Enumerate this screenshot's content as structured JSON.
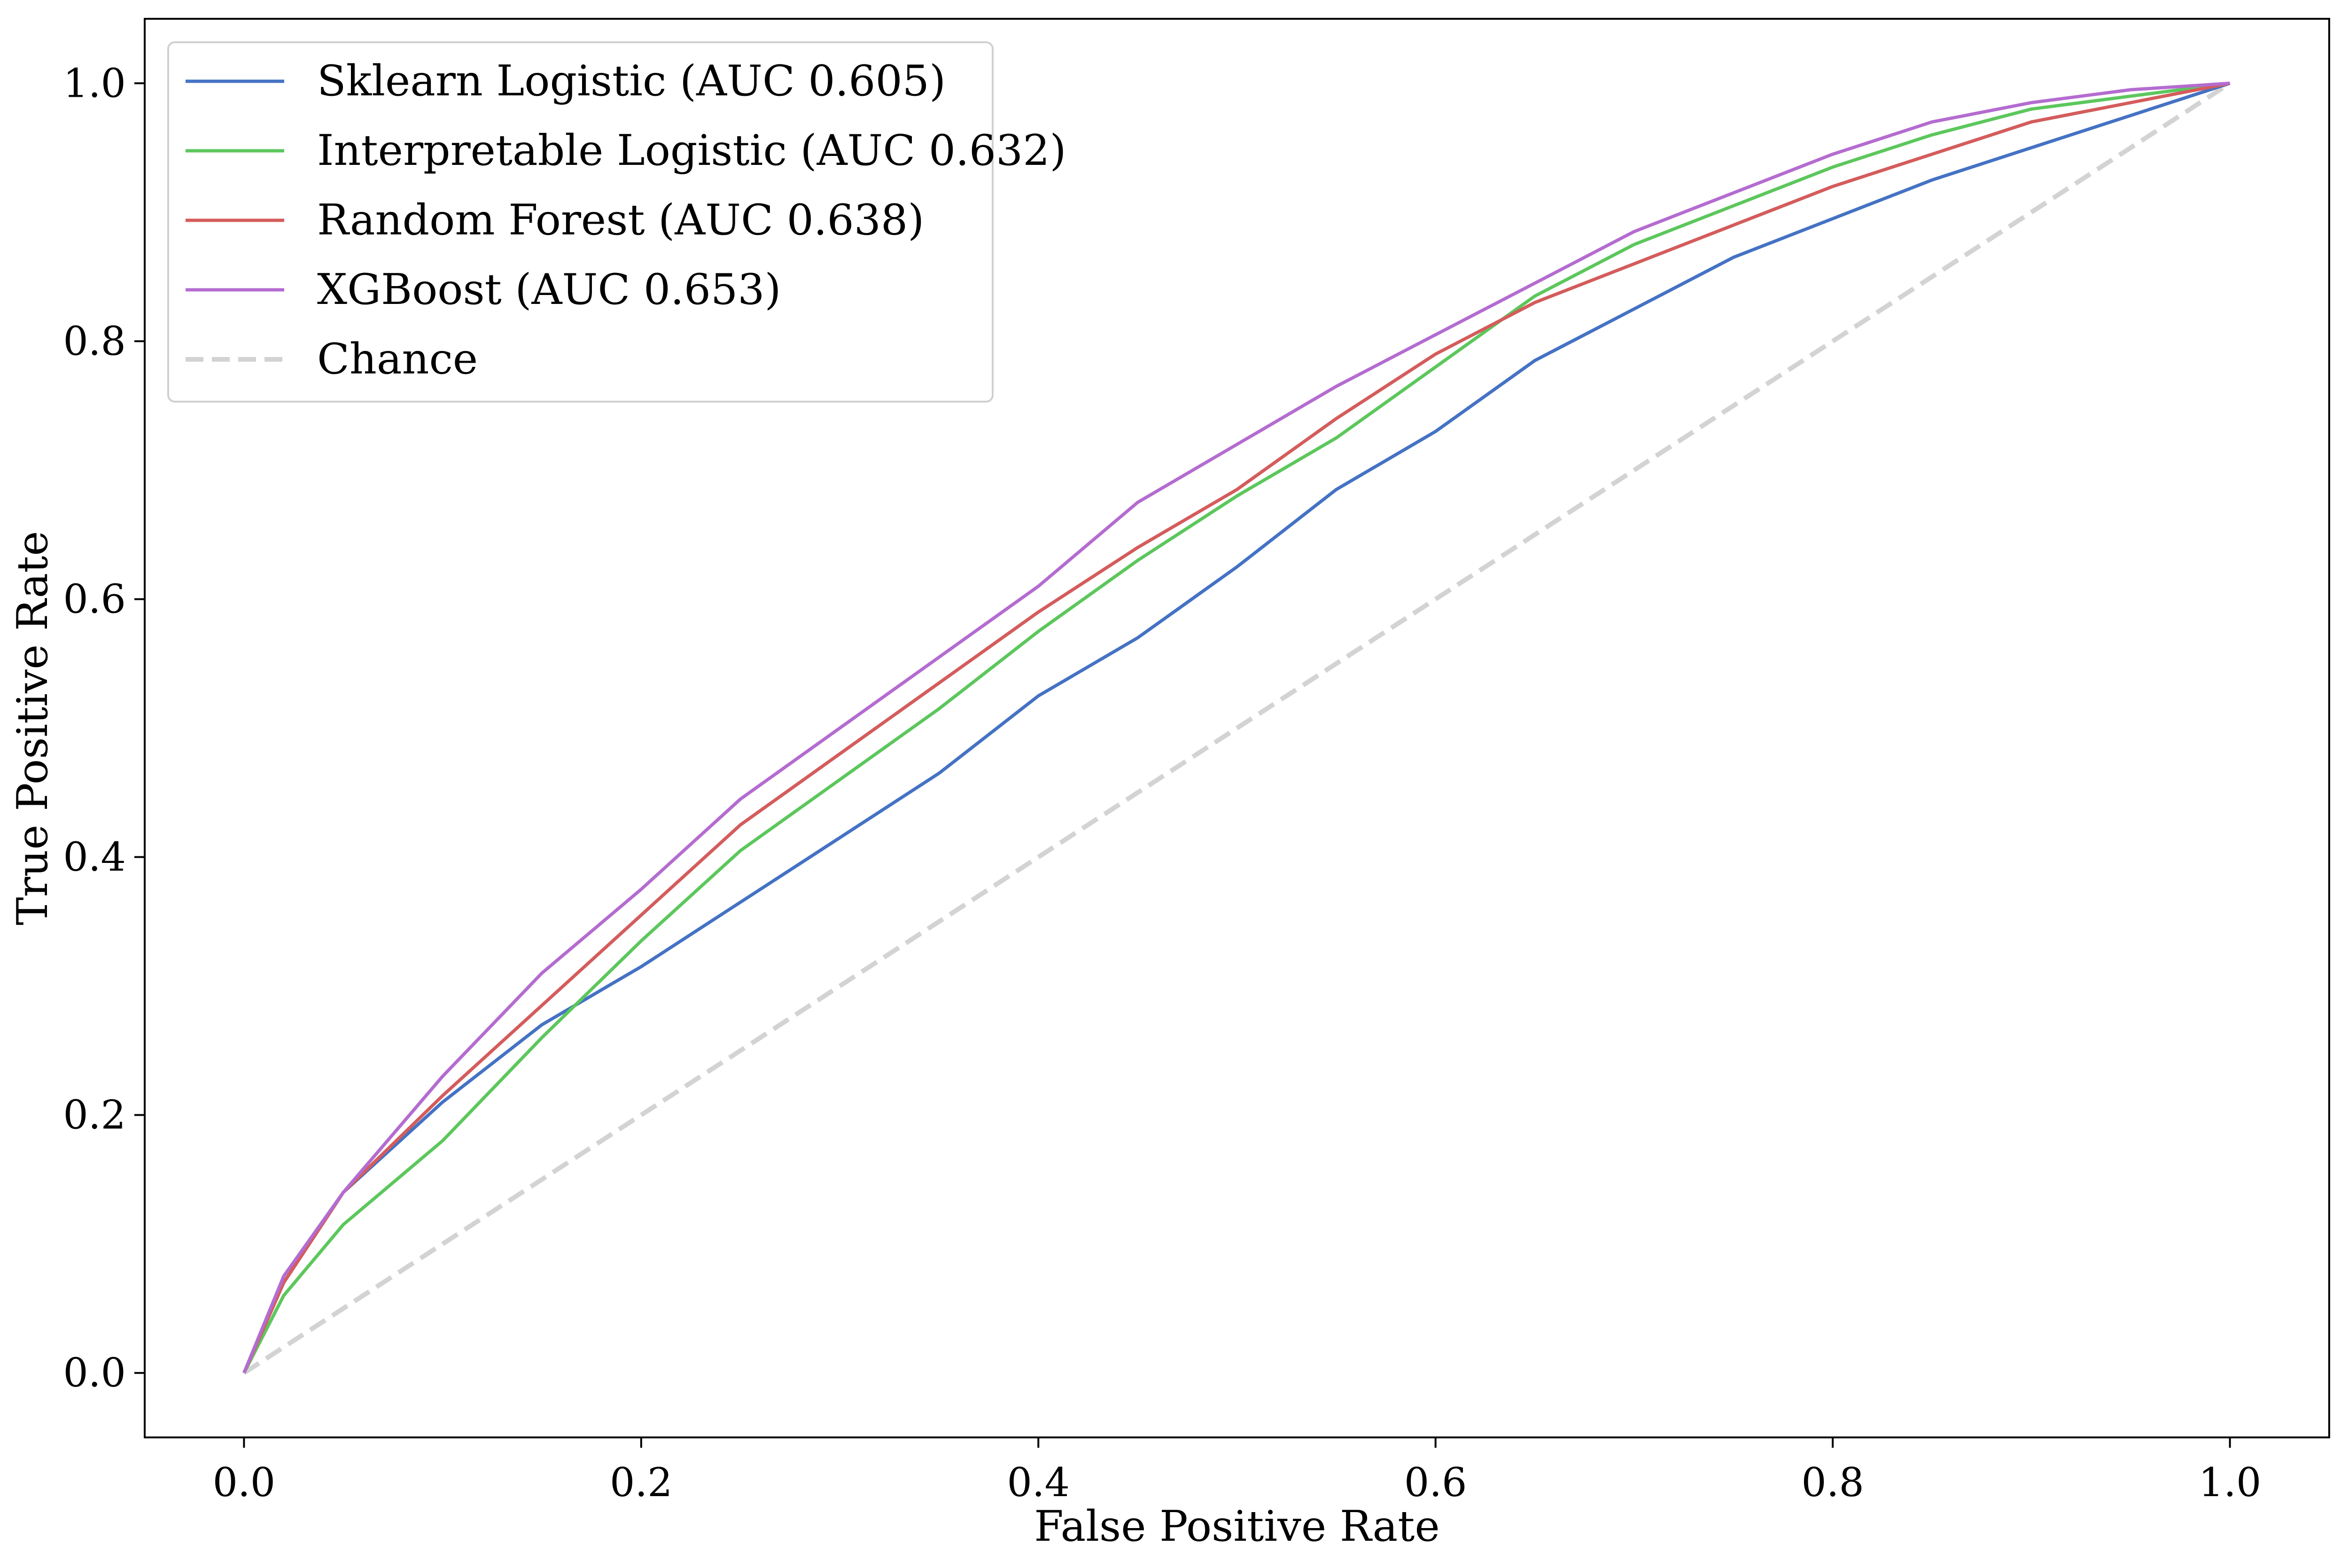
{
  "chart_data": {
    "type": "line",
    "title": "",
    "xlabel": "False Positive Rate",
    "ylabel": "True Positive Rate",
    "xlim": [
      -0.05,
      1.05
    ],
    "ylim": [
      -0.05,
      1.05
    ],
    "xticks": [
      0.0,
      0.2,
      0.4,
      0.6,
      0.8,
      1.0
    ],
    "yticks": [
      0.0,
      0.2,
      0.4,
      0.6,
      0.8,
      1.0
    ],
    "xtick_labels": [
      "0.0",
      "0.2",
      "0.4",
      "0.6",
      "0.8",
      "1.0"
    ],
    "ytick_labels": [
      "0.0",
      "0.2",
      "0.4",
      "0.6",
      "0.8",
      "1.0"
    ],
    "grid": false,
    "legend_position": "top-left",
    "series": [
      {
        "name": "Sklearn Logistic (AUC 0.605)",
        "color": "#4472c4",
        "style": "solid",
        "x": [
          0.0,
          0.02,
          0.05,
          0.1,
          0.15,
          0.2,
          0.25,
          0.3,
          0.35,
          0.4,
          0.45,
          0.5,
          0.55,
          0.6,
          0.65,
          0.7,
          0.75,
          0.8,
          0.85,
          0.9,
          0.95,
          1.0
        ],
        "y": [
          0.0,
          0.07,
          0.14,
          0.21,
          0.27,
          0.315,
          0.365,
          0.415,
          0.465,
          0.525,
          0.57,
          0.625,
          0.685,
          0.73,
          0.785,
          0.825,
          0.865,
          0.895,
          0.925,
          0.95,
          0.975,
          1.0
        ]
      },
      {
        "name": "Interpretable Logistic (AUC 0.632)",
        "color": "#5cc75c",
        "style": "solid",
        "x": [
          0.0,
          0.02,
          0.05,
          0.1,
          0.15,
          0.2,
          0.25,
          0.3,
          0.35,
          0.4,
          0.45,
          0.5,
          0.55,
          0.6,
          0.65,
          0.7,
          0.75,
          0.8,
          0.85,
          0.9,
          0.95,
          1.0
        ],
        "y": [
          0.0,
          0.06,
          0.115,
          0.18,
          0.26,
          0.335,
          0.405,
          0.46,
          0.515,
          0.575,
          0.63,
          0.68,
          0.725,
          0.78,
          0.835,
          0.875,
          0.905,
          0.935,
          0.96,
          0.98,
          0.99,
          1.0
        ]
      },
      {
        "name": "Random Forest (AUC 0.638)",
        "color": "#d45c5c",
        "style": "solid",
        "x": [
          0.0,
          0.02,
          0.05,
          0.1,
          0.15,
          0.2,
          0.25,
          0.3,
          0.35,
          0.4,
          0.45,
          0.5,
          0.55,
          0.6,
          0.65,
          0.7,
          0.75,
          0.8,
          0.85,
          0.9,
          0.95,
          1.0
        ],
        "y": [
          0.0,
          0.07,
          0.14,
          0.215,
          0.285,
          0.355,
          0.425,
          0.48,
          0.535,
          0.59,
          0.64,
          0.685,
          0.74,
          0.79,
          0.83,
          0.86,
          0.89,
          0.92,
          0.945,
          0.97,
          0.985,
          1.0
        ]
      },
      {
        "name": "XGBoost (AUC 0.653)",
        "color": "#b46cd0",
        "style": "solid",
        "x": [
          0.0,
          0.02,
          0.05,
          0.1,
          0.15,
          0.2,
          0.25,
          0.3,
          0.35,
          0.4,
          0.45,
          0.5,
          0.55,
          0.6,
          0.65,
          0.7,
          0.75,
          0.8,
          0.85,
          0.9,
          0.95,
          1.0
        ],
        "y": [
          0.0,
          0.075,
          0.14,
          0.23,
          0.31,
          0.375,
          0.445,
          0.5,
          0.555,
          0.61,
          0.675,
          0.72,
          0.765,
          0.805,
          0.845,
          0.885,
          0.915,
          0.945,
          0.97,
          0.985,
          0.995,
          1.0
        ]
      },
      {
        "name": "Chance",
        "color": "#d3d3d3",
        "style": "dashed",
        "x": [
          0.0,
          1.0
        ],
        "y": [
          0.0,
          1.0
        ]
      }
    ]
  }
}
